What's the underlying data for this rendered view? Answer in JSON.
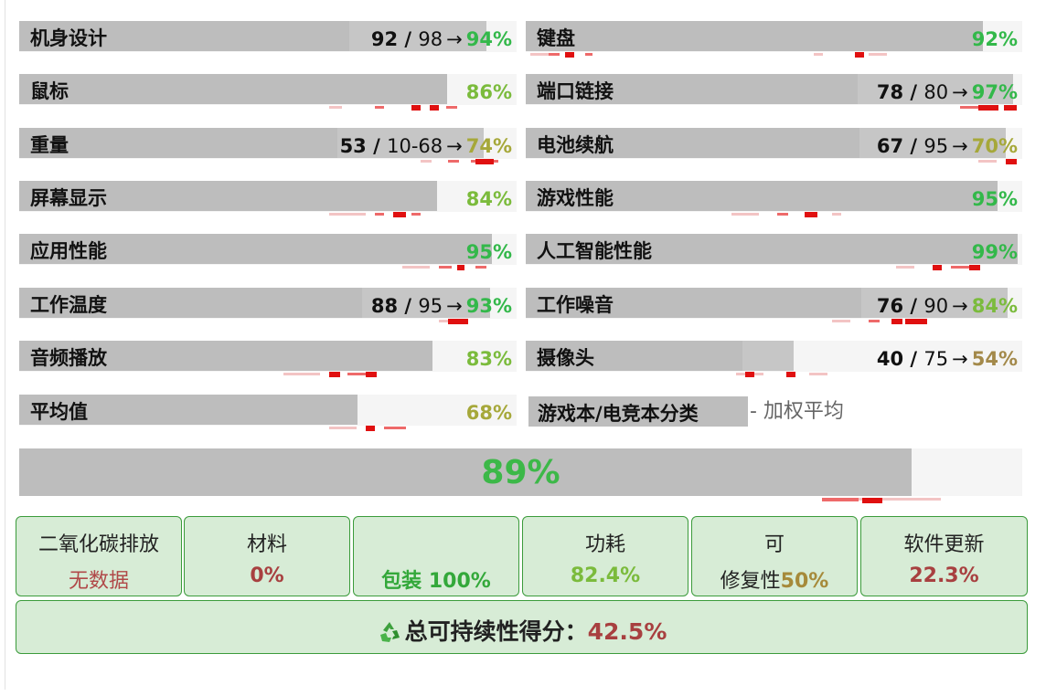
{
  "ratings": [
    {
      "label": "机身设计",
      "score": "92",
      "max": "98",
      "arrow": "→",
      "pct": "94%",
      "pct_color": "#33b84a",
      "fill_pct": 94
    },
    {
      "label": "键盘",
      "pct": "92%",
      "pct_color": "#33b84a",
      "fill_pct": 92
    },
    {
      "label": "鼠标",
      "pct": "86%",
      "pct_color": "#7bbb3c",
      "fill_pct": 86
    },
    {
      "label": "端口链接",
      "score": "78",
      "max": "80",
      "arrow": "→",
      "pct": "97%",
      "pct_color": "#33b84a",
      "fill_pct": 97
    },
    {
      "label": "重量",
      "score": "53",
      "max": "10-68",
      "arrow": "→",
      "pct": "74%",
      "pct_color": "#a6a83a",
      "fill_pct": 74
    },
    {
      "label": "电池续航",
      "score": "67",
      "max": "95",
      "arrow": "→",
      "pct": "70%",
      "pct_color": "#a6a83a",
      "fill_pct": 70
    },
    {
      "label": "屏幕显示",
      "pct": "84%",
      "pct_color": "#7bbb3c",
      "fill_pct": 84
    },
    {
      "label": "游戏性能",
      "pct": "95%",
      "pct_color": "#33b84a",
      "fill_pct": 95
    },
    {
      "label": "应用性能",
      "pct": "95%",
      "pct_color": "#33b84a",
      "fill_pct": 95
    },
    {
      "label": "人工智能性能",
      "pct": "99%",
      "pct_color": "#33b84a",
      "fill_pct": 99
    },
    {
      "label": "工作温度",
      "score": "88",
      "max": "95",
      "arrow": "→",
      "pct": "93%",
      "pct_color": "#33b84a",
      "fill_pct": 93
    },
    {
      "label": "工作噪音",
      "score": "76",
      "max": "90",
      "arrow": "→",
      "pct": "84%",
      "pct_color": "#7bbb3c",
      "fill_pct": 84
    },
    {
      "label": "音频播放",
      "pct": "83%",
      "pct_color": "#7bbb3c",
      "fill_pct": 83
    },
    {
      "label": "摄像头",
      "score": "40",
      "max": "75",
      "arrow": "→",
      "pct": "54%",
      "pct_color": "#a3894a",
      "fill_pct": 54
    },
    {
      "label": "平均值",
      "pct": "68%",
      "pct_color": "#a6a83a",
      "fill_pct": 68
    }
  ],
  "classification": {
    "label": "游戏本/电竞本分类",
    "note": "- 加权平均"
  },
  "total": {
    "value": "89%",
    "fill_pct": 89,
    "color": "#3cb848"
  },
  "sustainability": [
    {
      "title": "二氧化碳排放",
      "value": "无数据",
      "color": "#b04848",
      "bold": false
    },
    {
      "title": "材料",
      "value": "0%",
      "color": "#a84040",
      "bold": true
    },
    {
      "title": "",
      "value": "包装 100%",
      "color": "#33a83a",
      "bold": true
    },
    {
      "title": "功耗",
      "value": "82.4%",
      "color": "#7bbb3c",
      "bold": true
    },
    {
      "title": "可",
      "value_prefix": "修复性",
      "value": "50%",
      "color": "#a68a3a",
      "bold": true
    },
    {
      "title": "软件更新",
      "value": "22.3%",
      "color": "#a84040",
      "bold": true
    }
  ],
  "total_sustainability": {
    "label": "总可持续性得分：",
    "value": "42.5%",
    "value_color": "#a84040",
    "icon": "recycle-icon"
  }
}
